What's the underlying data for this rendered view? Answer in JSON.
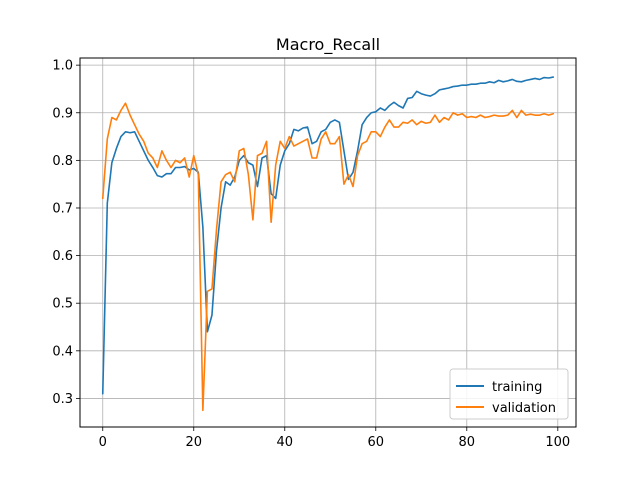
{
  "chart_data": {
    "type": "line",
    "title": "Macro_Recall",
    "xlabel": "",
    "ylabel": "",
    "xlim": [
      -5,
      104
    ],
    "ylim": [
      0.24,
      1.015
    ],
    "xticks": [
      0,
      20,
      40,
      60,
      80,
      100
    ],
    "yticks": [
      0.3,
      0.4,
      0.5,
      0.6,
      0.7,
      0.8,
      0.9,
      1.0
    ],
    "ytick_labels": [
      "0.3",
      "0.4",
      "0.5",
      "0.6",
      "0.7",
      "0.8",
      "0.9",
      "1.0"
    ],
    "grid": true,
    "legend_position": "lower-right",
    "series": [
      {
        "name": "training",
        "color": "#1f77b4",
        "x": [
          0,
          1,
          2,
          3,
          4,
          5,
          6,
          7,
          8,
          9,
          10,
          11,
          12,
          13,
          14,
          15,
          16,
          17,
          18,
          19,
          20,
          21,
          22,
          23,
          24,
          25,
          26,
          27,
          28,
          29,
          30,
          31,
          32,
          33,
          34,
          35,
          36,
          37,
          38,
          39,
          40,
          41,
          42,
          43,
          44,
          45,
          46,
          47,
          48,
          49,
          50,
          51,
          52,
          53,
          54,
          55,
          56,
          57,
          58,
          59,
          60,
          61,
          62,
          63,
          64,
          65,
          66,
          67,
          68,
          69,
          70,
          71,
          72,
          73,
          74,
          75,
          76,
          77,
          78,
          79,
          80,
          81,
          82,
          83,
          84,
          85,
          86,
          87,
          88,
          89,
          90,
          91,
          92,
          93,
          94,
          95,
          96,
          97,
          98,
          99
        ],
        "values": [
          0.31,
          0.71,
          0.795,
          0.825,
          0.85,
          0.86,
          0.858,
          0.86,
          0.84,
          0.82,
          0.8,
          0.785,
          0.768,
          0.765,
          0.772,
          0.772,
          0.785,
          0.785,
          0.787,
          0.78,
          0.783,
          0.775,
          0.66,
          0.44,
          0.475,
          0.61,
          0.7,
          0.755,
          0.748,
          0.765,
          0.8,
          0.81,
          0.795,
          0.79,
          0.745,
          0.805,
          0.81,
          0.73,
          0.72,
          0.79,
          0.82,
          0.835,
          0.865,
          0.862,
          0.868,
          0.87,
          0.835,
          0.84,
          0.86,
          0.865,
          0.88,
          0.885,
          0.88,
          0.82,
          0.76,
          0.775,
          0.82,
          0.875,
          0.89,
          0.9,
          0.902,
          0.91,
          0.905,
          0.915,
          0.922,
          0.915,
          0.91,
          0.93,
          0.932,
          0.945,
          0.94,
          0.937,
          0.935,
          0.94,
          0.948,
          0.95,
          0.952,
          0.955,
          0.956,
          0.958,
          0.958,
          0.96,
          0.96,
          0.962,
          0.962,
          0.965,
          0.963,
          0.968,
          0.965,
          0.967,
          0.97,
          0.966,
          0.965,
          0.968,
          0.97,
          0.972,
          0.97,
          0.974,
          0.973,
          0.975
        ]
      },
      {
        "name": "validation",
        "color": "#ff7f0e",
        "x": [
          0,
          1,
          2,
          3,
          4,
          5,
          6,
          7,
          8,
          9,
          10,
          11,
          12,
          13,
          14,
          15,
          16,
          17,
          18,
          19,
          20,
          21,
          22,
          23,
          24,
          25,
          26,
          27,
          28,
          29,
          30,
          31,
          32,
          33,
          34,
          35,
          36,
          37,
          38,
          39,
          40,
          41,
          42,
          43,
          44,
          45,
          46,
          47,
          48,
          49,
          50,
          51,
          52,
          53,
          54,
          55,
          56,
          57,
          58,
          59,
          60,
          61,
          62,
          63,
          64,
          65,
          66,
          67,
          68,
          69,
          70,
          71,
          72,
          73,
          74,
          75,
          76,
          77,
          78,
          79,
          80,
          81,
          82,
          83,
          84,
          85,
          86,
          87,
          88,
          89,
          90,
          91,
          92,
          93,
          94,
          95,
          96,
          97,
          98,
          99
        ],
        "values": [
          0.72,
          0.845,
          0.89,
          0.885,
          0.905,
          0.92,
          0.895,
          0.875,
          0.855,
          0.84,
          0.815,
          0.805,
          0.785,
          0.82,
          0.8,
          0.785,
          0.8,
          0.795,
          0.805,
          0.765,
          0.81,
          0.77,
          0.275,
          0.525,
          0.53,
          0.655,
          0.755,
          0.77,
          0.775,
          0.755,
          0.82,
          0.825,
          0.77,
          0.675,
          0.81,
          0.815,
          0.84,
          0.67,
          0.79,
          0.84,
          0.825,
          0.85,
          0.83,
          0.835,
          0.84,
          0.845,
          0.805,
          0.805,
          0.845,
          0.86,
          0.835,
          0.835,
          0.85,
          0.75,
          0.77,
          0.745,
          0.81,
          0.835,
          0.84,
          0.86,
          0.86,
          0.85,
          0.87,
          0.885,
          0.87,
          0.87,
          0.88,
          0.878,
          0.885,
          0.875,
          0.882,
          0.878,
          0.88,
          0.895,
          0.88,
          0.89,
          0.885,
          0.9,
          0.895,
          0.898,
          0.89,
          0.892,
          0.89,
          0.895,
          0.89,
          0.892,
          0.895,
          0.893,
          0.893,
          0.895,
          0.905,
          0.89,
          0.905,
          0.895,
          0.897,
          0.895,
          0.895,
          0.898,
          0.895,
          0.898
        ]
      }
    ]
  }
}
